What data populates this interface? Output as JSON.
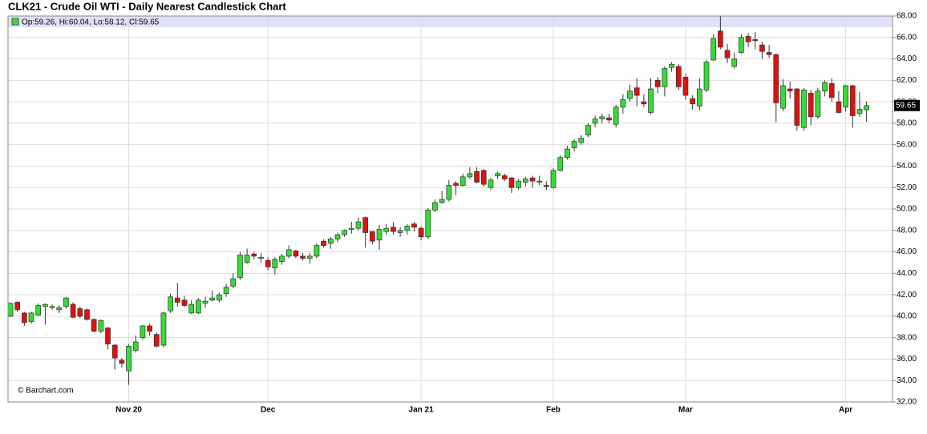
{
  "chart_data": {
    "type": "candlestick",
    "title": "CLK21 - Crude Oil WTI - Daily Nearest Candlestick Chart",
    "legend_text": "Op:59.26, Hi:60.04, Lo:58.12, Cl:59.65",
    "watermark": "© Barchart.com",
    "up_color": "#33dd33",
    "down_color": "#dd1111",
    "grid": true,
    "ylim": [
      32,
      68
    ],
    "yticks": [
      {
        "value": 32,
        "label": "32.00"
      },
      {
        "value": 34,
        "label": "34.00"
      },
      {
        "value": 36,
        "label": "36.00"
      },
      {
        "value": 38,
        "label": "38.00"
      },
      {
        "value": 40,
        "label": "40.00"
      },
      {
        "value": 42,
        "label": "42.00"
      },
      {
        "value": 44,
        "label": "44.00"
      },
      {
        "value": 46,
        "label": "46.00"
      },
      {
        "value": 48,
        "label": "48.00"
      },
      {
        "value": 50,
        "label": "50.00"
      },
      {
        "value": 52,
        "label": "52.00"
      },
      {
        "value": 54,
        "label": "54.00"
      },
      {
        "value": 56,
        "label": "56.00"
      },
      {
        "value": 58,
        "label": "58.00"
      },
      {
        "value": 60,
        "label": "60.00"
      },
      {
        "value": 62,
        "label": "62.00"
      },
      {
        "value": 64,
        "label": "64.00"
      },
      {
        "value": 66,
        "label": "66.00"
      },
      {
        "value": 68,
        "label": "68.00"
      }
    ],
    "categories": [
      null,
      null,
      null,
      null,
      null,
      null,
      null,
      null,
      null,
      null,
      null,
      null,
      null,
      null,
      null,
      null,
      null,
      "Nov 20",
      null,
      null,
      null,
      null,
      null,
      null,
      null,
      null,
      null,
      null,
      null,
      null,
      null,
      null,
      null,
      null,
      null,
      null,
      null,
      "Dec",
      null,
      null,
      null,
      null,
      null,
      null,
      null,
      null,
      null,
      null,
      null,
      null,
      null,
      null,
      null,
      null,
      null,
      null,
      null,
      null,
      null,
      "Jan 21",
      null,
      null,
      null,
      null,
      null,
      null,
      null,
      null,
      null,
      null,
      null,
      null,
      null,
      null,
      null,
      null,
      null,
      null,
      "Feb",
      null,
      null,
      null,
      null,
      null,
      null,
      null,
      null,
      null,
      null,
      null,
      null,
      null,
      null,
      null,
      null,
      null,
      null,
      "Mar",
      null,
      null,
      null,
      null,
      null,
      null,
      null,
      null,
      null,
      null,
      null,
      null,
      null,
      null,
      null,
      null,
      null,
      null,
      null,
      null,
      null,
      null,
      "Apr",
      null,
      null,
      null
    ],
    "open": [
      40.0,
      41.3,
      40.3,
      39.5,
      40.1,
      40.9,
      40.8,
      40.6,
      40.9,
      41.1,
      40.7,
      40.6,
      39.7,
      38.6,
      38.9,
      37.3,
      35.9,
      34.9,
      36.8,
      38.0,
      39.1,
      38.3,
      37.3,
      40.5,
      41.7,
      41.5,
      40.3,
      40.3,
      41.2,
      41.5,
      41.5,
      42.1,
      42.8,
      43.6,
      45.0,
      45.8,
      45.4,
      45.2,
      44.5,
      45.1,
      45.6,
      46.1,
      45.6,
      45.4,
      45.6,
      47.0,
      46.8,
      47.2,
      47.6,
      48.1,
      48.2,
      49.2,
      47.9,
      47.1,
      47.9,
      48.3,
      47.8,
      48.0,
      48.6,
      48.2,
      47.4,
      49.9,
      50.6,
      50.9,
      52.4,
      52.2,
      53.0,
      53.5,
      53.6,
      52.0,
      53.1,
      53.1,
      52.9,
      52.0,
      52.5,
      52.9,
      52.5,
      52.2,
      52.0,
      53.6,
      54.8,
      55.7,
      56.2,
      56.9,
      58.0,
      58.4,
      58.5,
      57.9,
      59.5,
      60.3,
      61.3,
      60.0,
      59.0,
      62.0,
      61.4,
      63.2,
      63.3,
      62.3,
      60.3,
      59.6,
      61.1,
      63.9,
      66.6,
      64.8,
      63.3,
      64.6,
      66.1,
      65.8,
      65.3,
      64.6,
      64.4,
      59.4,
      61.2,
      61.2,
      57.6,
      60.8,
      58.6,
      61.0,
      61.7,
      60.0,
      59.5,
      61.5,
      58.9,
      59.26
    ],
    "high": [
      41.3,
      41.4,
      40.4,
      40.4,
      41.2,
      41.2,
      41.1,
      41.0,
      41.8,
      41.3,
      40.9,
      40.7,
      39.8,
      39.7,
      39.0,
      37.4,
      36.1,
      37.4,
      38.2,
      39.2,
      39.3,
      38.5,
      40.4,
      42.1,
      43.1,
      41.9,
      41.5,
      41.7,
      41.8,
      42.4,
      42.2,
      43.0,
      44.0,
      46.0,
      46.3,
      46.0,
      45.9,
      45.5,
      45.5,
      45.8,
      46.6,
      46.2,
      45.9,
      45.9,
      46.8,
      47.2,
      47.4,
      47.8,
      48.1,
      48.8,
      49.2,
      49.3,
      47.9,
      48.5,
      48.6,
      48.8,
      48.3,
      48.6,
      48.8,
      48.4,
      50.1,
      50.9,
      51.7,
      52.7,
      52.6,
      53.3,
      53.9,
      53.9,
      53.7,
      52.9,
      53.5,
      53.3,
      53.0,
      52.8,
      53.0,
      53.1,
      53.1,
      52.6,
      53.8,
      55.0,
      55.9,
      56.5,
      56.9,
      58.0,
      58.7,
      58.9,
      58.9,
      59.7,
      60.7,
      61.6,
      62.2,
      60.7,
      62.2,
      62.3,
      63.3,
      63.7,
      63.5,
      62.6,
      60.6,
      62.2,
      63.9,
      66.3,
      68.0,
      65.4,
      64.6,
      66.3,
      66.4,
      66.5,
      65.6,
      65.3,
      64.5,
      62.1,
      61.9,
      61.3,
      61.3,
      61.1,
      61.3,
      62.0,
      62.2,
      61.0,
      61.6,
      61.6,
      60.9,
      60.04
    ],
    "low": [
      39.9,
      40.4,
      39.1,
      39.3,
      40.0,
      39.2,
      40.6,
      40.3,
      40.7,
      39.8,
      39.8,
      39.6,
      38.5,
      38.4,
      36.9,
      35.0,
      35.2,
      33.6,
      36.6,
      37.8,
      38.2,
      37.1,
      37.1,
      40.3,
      40.9,
      40.9,
      40.2,
      40.2,
      40.8,
      41.4,
      41.3,
      41.8,
      42.6,
      43.4,
      44.9,
      45.3,
      45.0,
      44.3,
      43.9,
      44.8,
      45.4,
      45.4,
      45.2,
      44.9,
      45.4,
      46.4,
      46.3,
      46.9,
      47.4,
      47.7,
      48.0,
      46.4,
      46.7,
      46.2,
      47.6,
      47.6,
      47.4,
      47.6,
      47.9,
      47.1,
      47.2,
      49.7,
      50.5,
      50.7,
      51.3,
      52.1,
      52.8,
      52.4,
      52.1,
      51.8,
      52.8,
      52.6,
      51.5,
      51.8,
      52.1,
      52.0,
      52.2,
      51.8,
      51.9,
      53.5,
      54.6,
      55.4,
      56.0,
      56.7,
      57.6,
      58.0,
      58.0,
      57.6,
      58.9,
      60.0,
      59.6,
      59.5,
      58.8,
      60.8,
      60.5,
      62.8,
      61.1,
      60.2,
      59.3,
      59.2,
      60.9,
      63.8,
      64.9,
      63.6,
      63.1,
      64.5,
      65.1,
      64.9,
      64.0,
      64.1,
      58.1,
      59.1,
      60.3,
      57.3,
      57.3,
      57.8,
      58.4,
      60.5,
      60.0,
      58.9,
      59.1,
      57.6,
      58.6,
      58.12
    ],
    "close": [
      41.2,
      40.6,
      39.4,
      40.3,
      41.0,
      41.1,
      40.9,
      40.8,
      41.7,
      39.9,
      40.0,
      39.7,
      38.6,
      39.6,
      37.4,
      36.1,
      35.6,
      37.2,
      37.6,
      39.1,
      38.6,
      37.2,
      40.3,
      41.8,
      41.3,
      41.0,
      41.1,
      41.5,
      41.4,
      41.7,
      42.0,
      42.7,
      43.5,
      45.7,
      45.7,
      45.6,
      45.5,
      44.6,
      45.3,
      45.6,
      46.2,
      45.6,
      45.4,
      45.6,
      46.6,
      46.6,
      47.2,
      47.6,
      48.0,
      48.2,
      48.8,
      47.8,
      47.0,
      48.1,
      48.2,
      47.9,
      48.0,
      48.4,
      48.3,
      47.4,
      49.9,
      50.6,
      50.9,
      52.2,
      52.2,
      53.0,
      53.3,
      52.5,
      52.3,
      52.7,
      53.3,
      52.8,
      52.0,
      52.6,
      52.8,
      52.6,
      52.6,
      52.1,
      53.6,
      54.8,
      55.6,
      56.3,
      56.6,
      57.8,
      58.4,
      58.6,
      58.3,
      59.5,
      60.2,
      61.0,
      60.6,
      59.8,
      61.2,
      61.4,
      63.1,
      63.5,
      61.4,
      60.6,
      59.8,
      61.2,
      63.7,
      65.9,
      65.1,
      64.1,
      64.0,
      66.0,
      65.6,
      65.7,
      64.7,
      64.4,
      59.9,
      61.5,
      61.0,
      57.8,
      61.1,
      58.6,
      61.0,
      61.8,
      60.4,
      59.0,
      61.5,
      58.7,
      59.3,
      59.65
    ]
  }
}
